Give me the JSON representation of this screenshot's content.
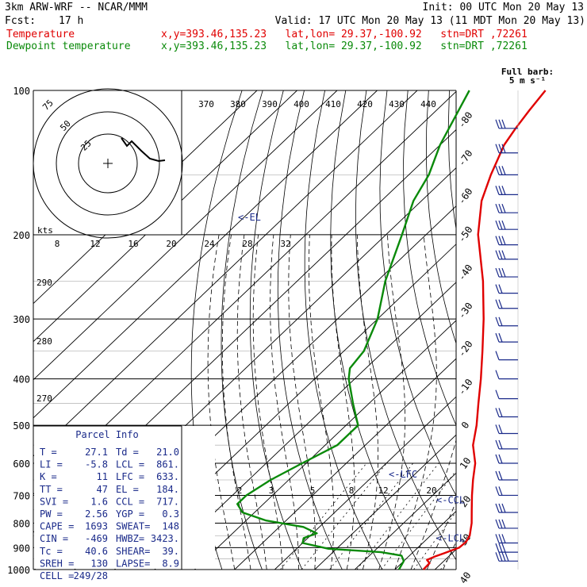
{
  "header": {
    "model": "3km ARW-WRF -- NCAR/MMM",
    "init": "Init: 00 UTC Mon 20 May 13",
    "fcst_label": "Fcst:",
    "fcst_value": "17 h",
    "valid": "Valid: 17 UTC Mon 20 May 13 (11 MDT Mon 20 May 13)"
  },
  "legend": [
    {
      "name": "Temperature",
      "info": "x,y=393.46,135.23   lat,lon= 29.37,-100.92   stn=DRT ,72261",
      "color": "#e00000"
    },
    {
      "name": "Dewpoint temperature",
      "info": "x,y=393.46,135.23   lat,lon= 29.37,-100.92   stn=DRT ,72261",
      "color": "#0a8a0a"
    }
  ],
  "barb_legend": {
    "line1": "Full barb:",
    "line2": "5 m s⁻¹"
  },
  "hodograph": {
    "unit": "kts",
    "ring_labels": [
      "25",
      "50",
      "75"
    ]
  },
  "parcel_info": {
    "title": "Parcel Info",
    "rows": [
      [
        "T  =",
        "27.1",
        "Td =",
        "21.0"
      ],
      [
        "LI =",
        "-5.8",
        "LCL =",
        "861."
      ],
      [
        "K  =",
        "11",
        "LFC =",
        "633."
      ],
      [
        "TT =",
        "47",
        "EL  =",
        "184."
      ],
      [
        "SVI =",
        "1.6",
        "CCL =",
        "717."
      ],
      [
        "PW  =",
        "2.56",
        "YGP =",
        "0.3"
      ],
      [
        "CAPE =",
        "1693",
        "SWEAT=",
        "148"
      ],
      [
        "CIN  =",
        "-469",
        "HWBZ=",
        "3423."
      ],
      [
        "Tc  =",
        "40.6",
        "SHEAR=",
        "39."
      ],
      [
        "SREH =",
        "130",
        "LAPSE=",
        "8.9"
      ],
      [
        "CELL =",
        "249/28",
        "",
        ""
      ]
    ]
  },
  "level_markers": [
    {
      "text": "<-EL",
      "p": 184
    },
    {
      "text": "<-LFC",
      "p": 633
    },
    {
      "text": "<-CCL",
      "p": 717
    },
    {
      "text": "<-LCL",
      "p": 861
    }
  ],
  "colors": {
    "temperature": "#e00000",
    "dewpoint": "#0a8a0a",
    "isotherm": "#000000",
    "parcel_text": "#1a2a8a",
    "barb": "#1a2a8a"
  },
  "chart_data": {
    "type": "line",
    "y_scale": "log-pressure",
    "ylabel": "",
    "xlabel": "",
    "p_range": [
      100,
      1000
    ],
    "pressure_ticks": [
      "100",
      "200",
      "300",
      "400",
      "500",
      "600",
      "700",
      "800",
      "900",
      "1000"
    ],
    "isotherm_labels": [
      {
        "t": -80,
        "text": "-80"
      },
      {
        "t": -70,
        "text": "-70"
      },
      {
        "t": -60,
        "text": "-60"
      },
      {
        "t": -50,
        "text": "-50"
      },
      {
        "t": -40,
        "text": "-40"
      },
      {
        "t": -30,
        "text": "-30"
      },
      {
        "t": -20,
        "text": "-20"
      },
      {
        "t": -10,
        "text": "-10"
      },
      {
        "t": 0,
        "text": "0"
      },
      {
        "t": 10,
        "text": "10"
      },
      {
        "t": 20,
        "text": "20"
      },
      {
        "t": 30,
        "text": "30"
      },
      {
        "t": 40,
        "text": "40"
      }
    ],
    "theta_labels": [
      "370",
      "380",
      "390",
      "400",
      "410",
      "420",
      "430",
      "440"
    ],
    "thetae_labels": [
      "8",
      "12",
      "16",
      "20",
      "24",
      "28",
      "32"
    ],
    "dry_adiabat_labels": [
      "290",
      "280",
      "270"
    ],
    "mixing_ratio_labels": [
      "2",
      "3",
      "5",
      "8",
      "12",
      "20"
    ],
    "series": [
      {
        "name": "Temperature",
        "color": "#e00000",
        "points": [
          [
            1000,
            27.1
          ],
          [
            970,
            27.0
          ],
          [
            955,
            25.5
          ],
          [
            940,
            26.5
          ],
          [
            925,
            28.0
          ],
          [
            900,
            30.3
          ],
          [
            875,
            30.5
          ],
          [
            850,
            29.8
          ],
          [
            800,
            27.0
          ],
          [
            750,
            23.5
          ],
          [
            700,
            19.8
          ],
          [
            650,
            16.0
          ],
          [
            600,
            12.2
          ],
          [
            550,
            6.9
          ],
          [
            500,
            2.6
          ],
          [
            450,
            -2.7
          ],
          [
            400,
            -8.5
          ],
          [
            350,
            -15.4
          ],
          [
            300,
            -23.5
          ],
          [
            250,
            -33.6
          ],
          [
            200,
            -47.0
          ],
          [
            170,
            -55.0
          ],
          [
            150,
            -59.5
          ],
          [
            130,
            -64.0
          ],
          [
            120,
            -65.5
          ],
          [
            110,
            -66.8
          ],
          [
            100,
            -68.0
          ]
        ]
      },
      {
        "name": "Dewpoint temperature",
        "color": "#0a8a0a",
        "points": [
          [
            1000,
            21.0
          ],
          [
            960,
            20.0
          ],
          [
            935,
            18.0
          ],
          [
            920,
            12.0
          ],
          [
            905,
            -2.0
          ],
          [
            880,
            -10.0
          ],
          [
            860,
            -11.0
          ],
          [
            840,
            -9.0
          ],
          [
            815,
            -14.0
          ],
          [
            790,
            -25.0
          ],
          [
            760,
            -33.0
          ],
          [
            730,
            -36.5
          ],
          [
            700,
            -36.5
          ],
          [
            650,
            -34.5
          ],
          [
            600,
            -31.0
          ],
          [
            550,
            -27.0
          ],
          [
            500,
            -27.0
          ],
          [
            450,
            -34.0
          ],
          [
            400,
            -41.5
          ],
          [
            380,
            -44.0
          ],
          [
            350,
            -45.0
          ],
          [
            300,
            -50.0
          ],
          [
            250,
            -58.0
          ],
          [
            200,
            -66.0
          ],
          [
            170,
            -72.0
          ],
          [
            150,
            -75.0
          ],
          [
            130,
            -80.0
          ],
          [
            100,
            -87.0
          ]
        ]
      }
    ],
    "hodograph_path": [
      [
        153,
        174
      ],
      [
        160,
        184
      ],
      [
        166,
        178
      ],
      [
        178,
        190
      ],
      [
        189,
        200
      ],
      [
        200,
        203
      ],
      [
        208,
        202
      ]
    ],
    "wind_barbs": [
      {
        "p": 120,
        "ticks": 3
      },
      {
        "p": 135,
        "ticks": 3
      },
      {
        "p": 150,
        "ticks": 3
      },
      {
        "p": 165,
        "ticks": 3
      },
      {
        "p": 180,
        "ticks": 3
      },
      {
        "p": 195,
        "ticks": 3
      },
      {
        "p": 210,
        "ticks": 3
      },
      {
        "p": 225,
        "ticks": 3
      },
      {
        "p": 245,
        "ticks": 3
      },
      {
        "p": 265,
        "ticks": 2
      },
      {
        "p": 285,
        "ticks": 2
      },
      {
        "p": 310,
        "ticks": 2
      },
      {
        "p": 335,
        "ticks": 2
      },
      {
        "p": 365,
        "ticks": 1
      },
      {
        "p": 400,
        "ticks": 1
      },
      {
        "p": 440,
        "ticks": 1
      },
      {
        "p": 480,
        "ticks": 2
      },
      {
        "p": 520,
        "ticks": 2
      },
      {
        "p": 560,
        "ticks": 2
      },
      {
        "p": 600,
        "ticks": 2
      },
      {
        "p": 650,
        "ticks": 2
      },
      {
        "p": 700,
        "ticks": 2
      },
      {
        "p": 760,
        "ticks": 3
      },
      {
        "p": 820,
        "ticks": 3
      },
      {
        "p": 880,
        "ticks": 3
      },
      {
        "p": 920,
        "ticks": 3
      },
      {
        "p": 960,
        "ticks": 4
      }
    ]
  }
}
